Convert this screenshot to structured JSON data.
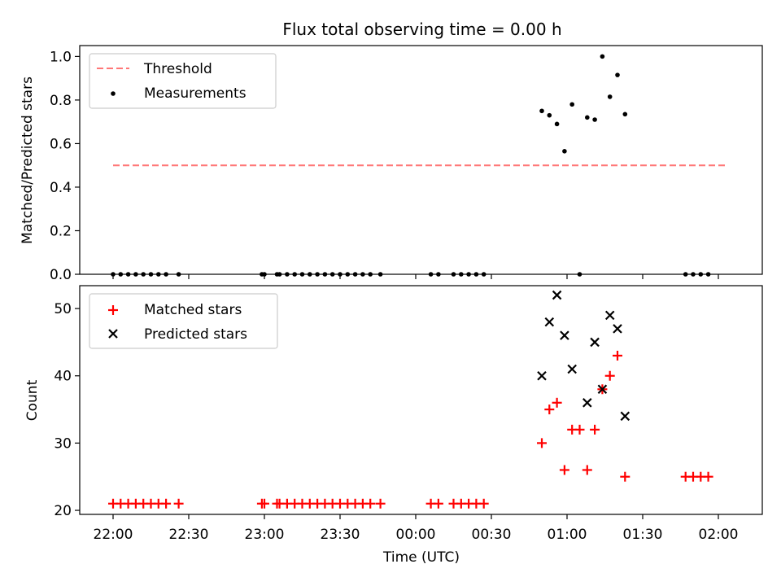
{
  "chart_data": {
    "title": "Flux total observing time = 0.00 h",
    "xlabel": "Time (UTC)",
    "x_ticks": [
      "22:00",
      "22:30",
      "23:00",
      "23:30",
      "00:00",
      "00:30",
      "01:00",
      "01:30",
      "02:00"
    ],
    "colors": {
      "threshold": "#ff7777",
      "measurement": "#000000",
      "matched": "#ff0000",
      "predicted": "#000000"
    },
    "panels": [
      {
        "type": "scatter",
        "ylabel": "Matched/Predicted stars",
        "ylim": [
          0,
          1.05
        ],
        "y_ticks": [
          0.0,
          0.2,
          0.4,
          0.6,
          0.8,
          1.0
        ],
        "y_tick_labels": [
          "0.0",
          "0.2",
          "0.4",
          "0.6",
          "0.8",
          "1.0"
        ],
        "legend_position": "top-left",
        "threshold": {
          "name": "Threshold",
          "value": 0.5,
          "x_start": "22:00",
          "x_end": "02:03"
        },
        "series": [
          {
            "name": "Measurements",
            "marker": "dot",
            "points": [
              [
                "22:00",
                0.0
              ],
              [
                "22:03",
                0.0
              ],
              [
                "22:06",
                0.0
              ],
              [
                "22:09",
                0.0
              ],
              [
                "22:12",
                0.0
              ],
              [
                "22:15",
                0.0
              ],
              [
                "22:18",
                0.0
              ],
              [
                "22:21",
                0.0
              ],
              [
                "22:26",
                0.0
              ],
              [
                "22:59",
                0.0
              ],
              [
                "23:00",
                0.0
              ],
              [
                "23:05",
                0.0
              ],
              [
                "23:06",
                0.0
              ],
              [
                "23:09",
                0.0
              ],
              [
                "23:12",
                0.0
              ],
              [
                "23:15",
                0.0
              ],
              [
                "23:18",
                0.0
              ],
              [
                "23:21",
                0.0
              ],
              [
                "23:24",
                0.0
              ],
              [
                "23:27",
                0.0
              ],
              [
                "23:30",
                0.0
              ],
              [
                "23:33",
                0.0
              ],
              [
                "23:36",
                0.0
              ],
              [
                "23:39",
                0.0
              ],
              [
                "23:42",
                0.0
              ],
              [
                "23:46",
                0.0
              ],
              [
                "00:06",
                0.0
              ],
              [
                "00:09",
                0.0
              ],
              [
                "00:15",
                0.0
              ],
              [
                "00:18",
                0.0
              ],
              [
                "00:21",
                0.0
              ],
              [
                "00:24",
                0.0
              ],
              [
                "00:27",
                0.0
              ],
              [
                "00:50",
                0.75
              ],
              [
                "00:53",
                0.73
              ],
              [
                "00:56",
                0.69
              ],
              [
                "00:59",
                0.565
              ],
              [
                "01:02",
                0.78
              ],
              [
                "01:05",
                0.0
              ],
              [
                "01:08",
                0.72
              ],
              [
                "01:11",
                0.71
              ],
              [
                "01:14",
                1.0
              ],
              [
                "01:17",
                0.815
              ],
              [
                "01:20",
                0.915
              ],
              [
                "01:23",
                0.735
              ],
              [
                "01:47",
                0.0
              ],
              [
                "01:50",
                0.0
              ],
              [
                "01:53",
                0.0
              ],
              [
                "01:56",
                0.0
              ]
            ]
          }
        ]
      },
      {
        "type": "scatter",
        "ylabel": "Count",
        "ylim": [
          19.4,
          53.4
        ],
        "y_ticks": [
          20,
          30,
          40,
          50
        ],
        "y_tick_labels": [
          "20",
          "30",
          "40",
          "50"
        ],
        "legend_position": "top-left",
        "series": [
          {
            "name": "Matched stars",
            "marker": "plus",
            "points": [
              [
                "22:00",
                21
              ],
              [
                "22:03",
                21
              ],
              [
                "22:06",
                21
              ],
              [
                "22:09",
                21
              ],
              [
                "22:12",
                21
              ],
              [
                "22:15",
                21
              ],
              [
                "22:18",
                21
              ],
              [
                "22:21",
                21
              ],
              [
                "22:26",
                21
              ],
              [
                "22:59",
                21
              ],
              [
                "23:00",
                21
              ],
              [
                "23:05",
                21
              ],
              [
                "23:06",
                21
              ],
              [
                "23:09",
                21
              ],
              [
                "23:12",
                21
              ],
              [
                "23:15",
                21
              ],
              [
                "23:18",
                21
              ],
              [
                "23:21",
                21
              ],
              [
                "23:24",
                21
              ],
              [
                "23:27",
                21
              ],
              [
                "23:30",
                21
              ],
              [
                "23:33",
                21
              ],
              [
                "23:36",
                21
              ],
              [
                "23:39",
                21
              ],
              [
                "23:42",
                21
              ],
              [
                "23:46",
                21
              ],
              [
                "00:06",
                21
              ],
              [
                "00:09",
                21
              ],
              [
                "00:15",
                21
              ],
              [
                "00:18",
                21
              ],
              [
                "00:21",
                21
              ],
              [
                "00:24",
                21
              ],
              [
                "00:27",
                21
              ],
              [
                "00:50",
                30
              ],
              [
                "00:53",
                35
              ],
              [
                "00:56",
                36
              ],
              [
                "00:59",
                26
              ],
              [
                "01:02",
                32
              ],
              [
                "01:05",
                32
              ],
              [
                "01:08",
                26
              ],
              [
                "01:11",
                32
              ],
              [
                "01:14",
                38
              ],
              [
                "01:17",
                40
              ],
              [
                "01:20",
                43
              ],
              [
                "01:23",
                25
              ],
              [
                "01:47",
                25
              ],
              [
                "01:50",
                25
              ],
              [
                "01:53",
                25
              ],
              [
                "01:56",
                25
              ]
            ]
          },
          {
            "name": "Predicted stars",
            "marker": "x",
            "points": [
              [
                "00:50",
                40
              ],
              [
                "00:53",
                48
              ],
              [
                "00:56",
                52
              ],
              [
                "00:59",
                46
              ],
              [
                "01:02",
                41
              ],
              [
                "01:08",
                36
              ],
              [
                "01:11",
                45
              ],
              [
                "01:14",
                38
              ],
              [
                "01:17",
                49
              ],
              [
                "01:20",
                47
              ],
              [
                "01:23",
                34
              ]
            ]
          }
        ]
      }
    ]
  }
}
